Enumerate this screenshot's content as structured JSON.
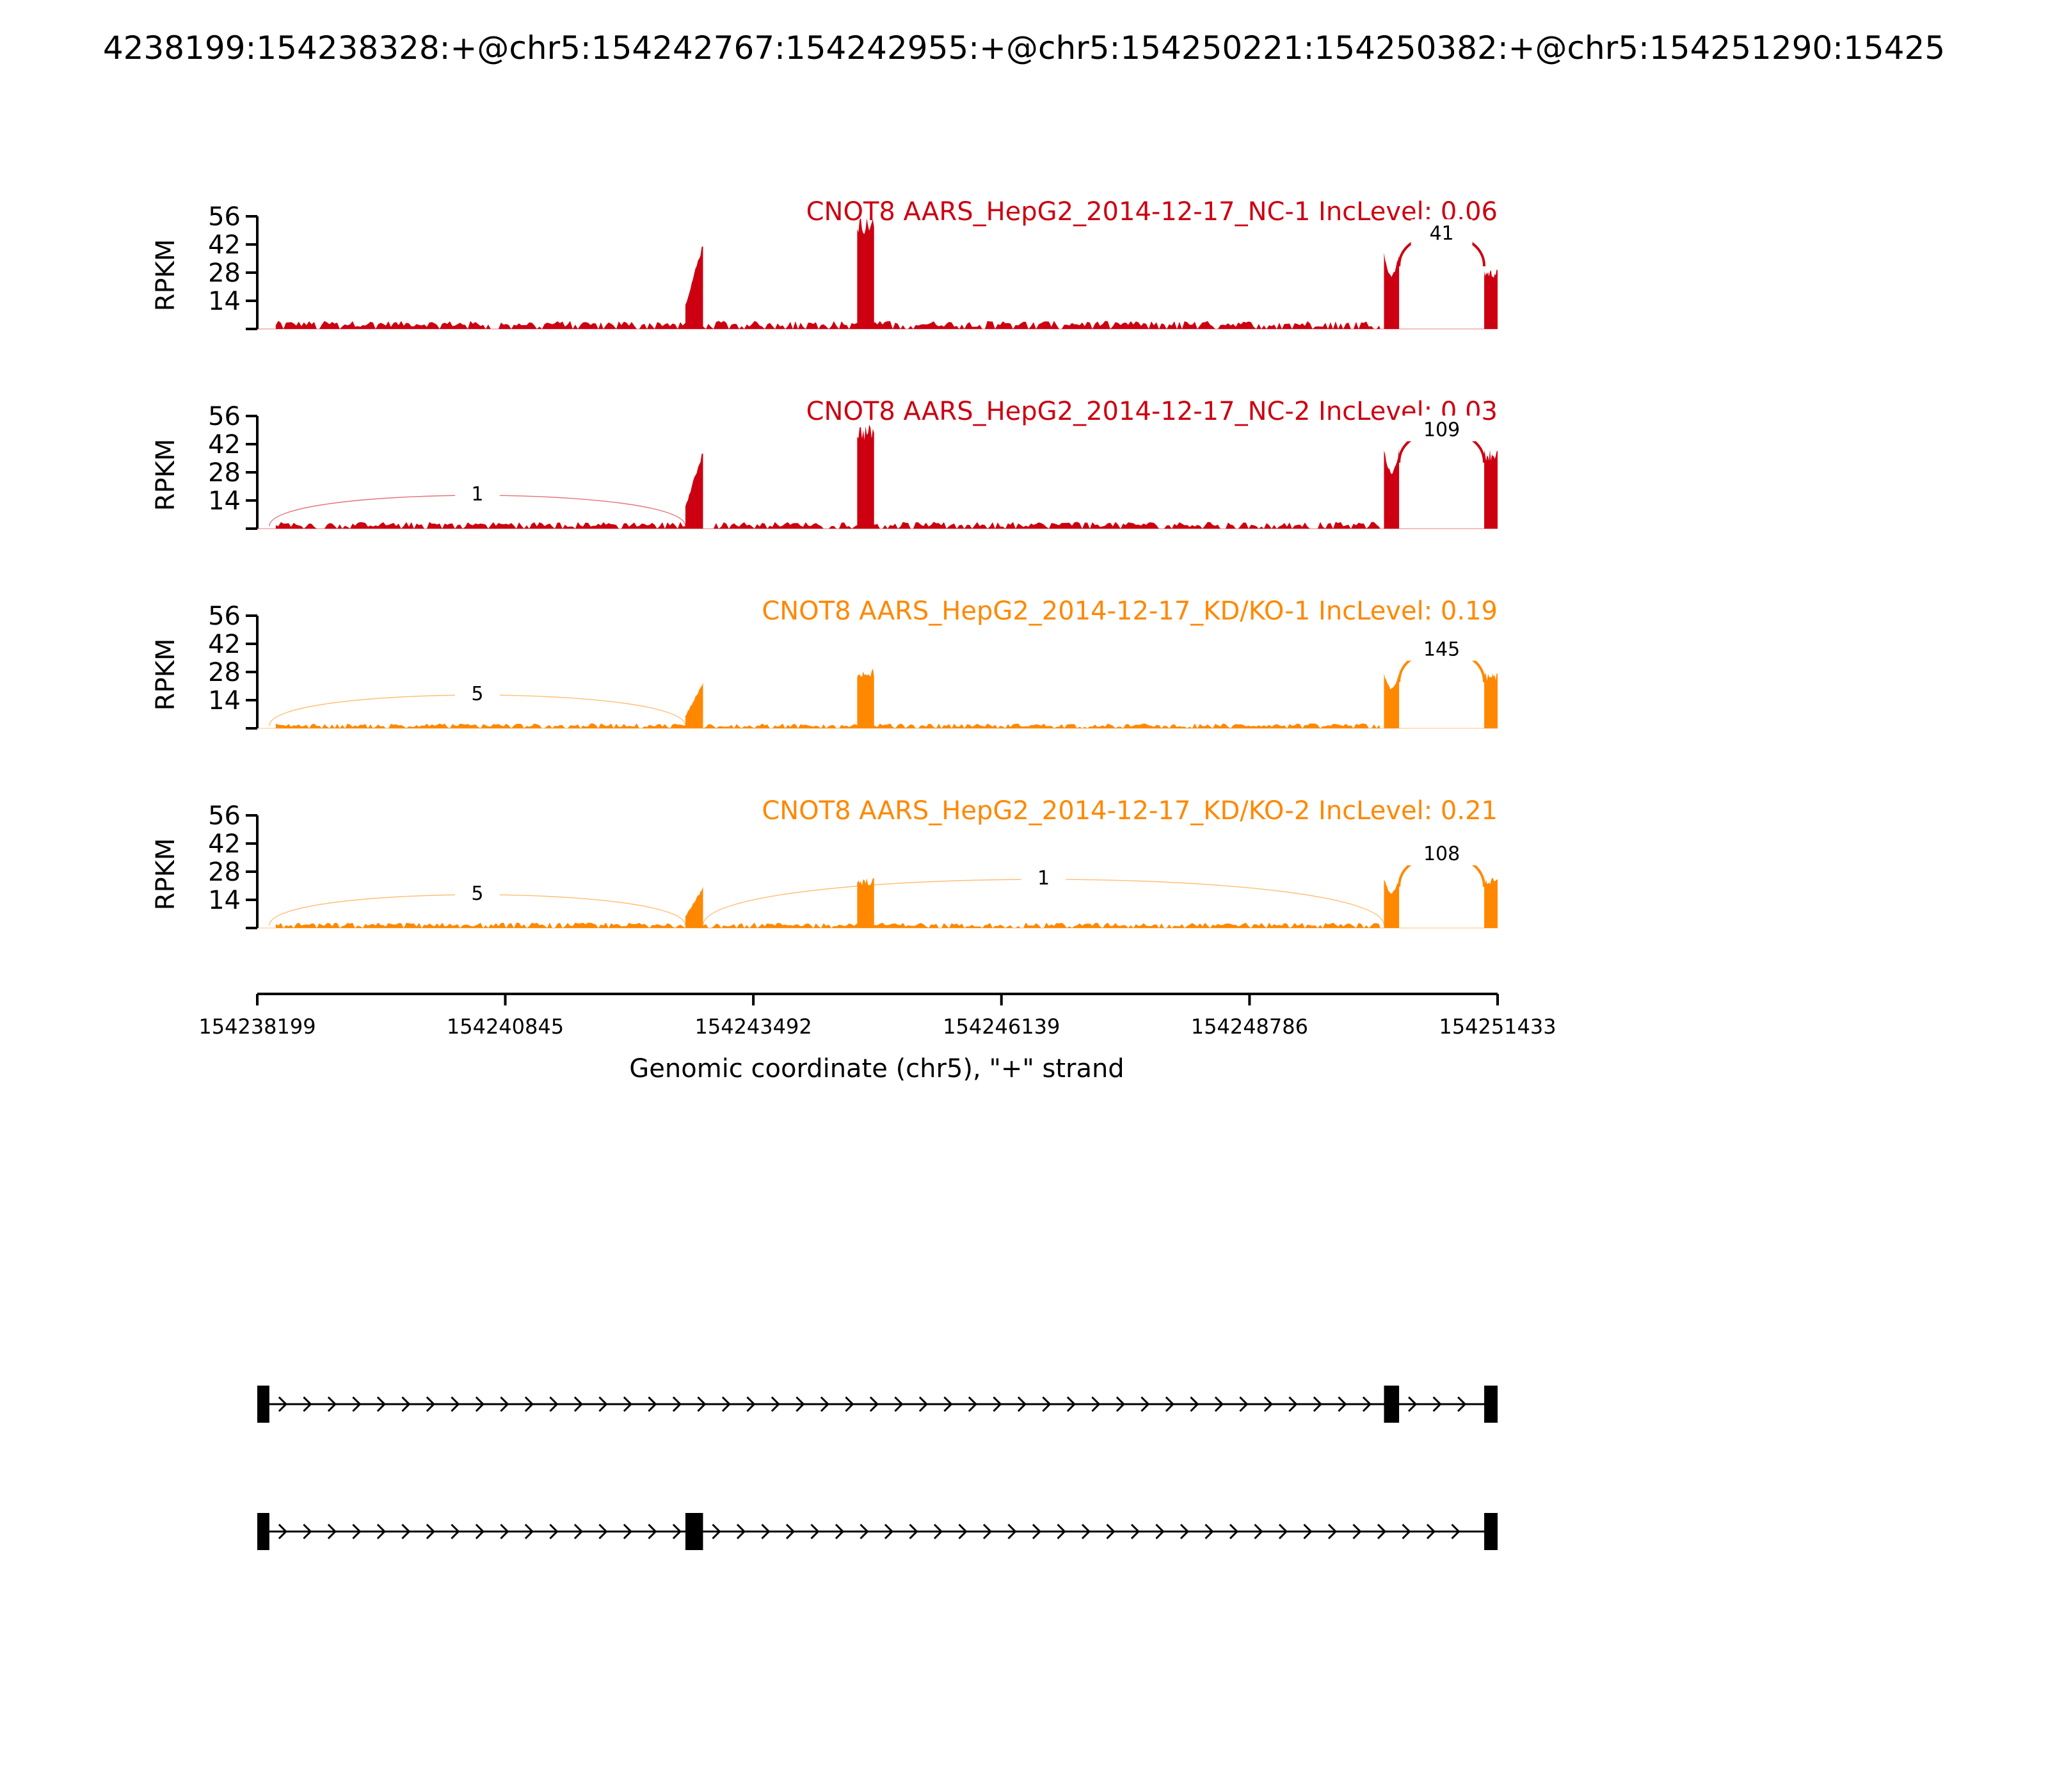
{
  "figure": {
    "title": "4238199:154238328:+@chr5:154242767:154242955:+@chr5:154250221:154250382:+@chr5:154251290:15425",
    "xlabel": "Genomic coordinate (chr5), \"+\" strand"
  },
  "chart_data": {
    "type": "area",
    "chart_kind": "sashimi",
    "xlim": [
      154238199,
      154251433
    ],
    "ylim": [
      0,
      56
    ],
    "x_ticks": [
      154238199,
      154240845,
      154243492,
      154246139,
      154248786,
      154251433
    ],
    "x_tick_labels": [
      "154238199",
      "154240845",
      "154243492",
      "154246139",
      "154248786",
      "154251433"
    ],
    "y_ticks": [
      14,
      28,
      42,
      56
    ],
    "y_tick_labels": [
      "14",
      "28",
      "42",
      "56"
    ],
    "ylabel": "RPKM",
    "exons": [
      {
        "start": 154238199,
        "end": 154238328
      },
      {
        "start": 154242767,
        "end": 154242955
      },
      {
        "start": 154244600,
        "end": 154244780
      },
      {
        "start": 154250221,
        "end": 154250382
      },
      {
        "start": 154251290,
        "end": 154251433
      }
    ],
    "tracks": [
      {
        "label": "CNOT8 AARS_HepG2_2014-12-17_NC-1 IncLevel: 0.06",
        "color": "#cc0011",
        "exon_peaks": [
          0,
          44,
          56,
          38,
          30
        ],
        "baseline": 3,
        "junctions": [
          {
            "from": 154250382,
            "to": 154251290,
            "count": 41,
            "count_label": "41"
          }
        ]
      },
      {
        "label": "CNOT8 AARS_HepG2_2014-12-17_NC-2 IncLevel: 0.03",
        "color": "#cc0011",
        "exon_peaks": [
          0,
          40,
          52,
          40,
          40
        ],
        "baseline": 2.5,
        "junctions": [
          {
            "from": 154238328,
            "to": 154242767,
            "count": 1,
            "count_label": "1"
          },
          {
            "from": 154250382,
            "to": 154251290,
            "count": 109,
            "count_label": "109"
          }
        ]
      },
      {
        "label": "CNOT8 AARS_HepG2_2014-12-17_KD/KO-1 IncLevel: 0.19",
        "color": "#ff8800",
        "exon_peaks": [
          0,
          23,
          30,
          28,
          28
        ],
        "baseline": 1.8,
        "junctions": [
          {
            "from": 154238328,
            "to": 154242767,
            "count": 5,
            "count_label": "5"
          },
          {
            "from": 154250382,
            "to": 154251290,
            "count": 145,
            "count_label": "145"
          }
        ]
      },
      {
        "label": "CNOT8 AARS_HepG2_2014-12-17_KD/KO-2 IncLevel: 0.21",
        "color": "#ff8800",
        "exon_peaks": [
          0,
          21,
          25,
          25,
          25
        ],
        "baseline": 2,
        "junctions": [
          {
            "from": 154238328,
            "to": 154242767,
            "count": 5,
            "count_label": "5"
          },
          {
            "from": 154242955,
            "to": 154250221,
            "count": 1,
            "count_label": "1"
          },
          {
            "from": 154250382,
            "to": 154251290,
            "count": 108,
            "count_label": "108"
          }
        ]
      }
    ],
    "isoforms": [
      {
        "exons": [
          [
            154238199,
            154238328
          ],
          [
            154250221,
            154250382
          ],
          [
            154251290,
            154251433
          ]
        ]
      },
      {
        "exons": [
          [
            154238199,
            154238328
          ],
          [
            154242767,
            154242955
          ],
          [
            154251290,
            154251433
          ]
        ]
      }
    ]
  }
}
